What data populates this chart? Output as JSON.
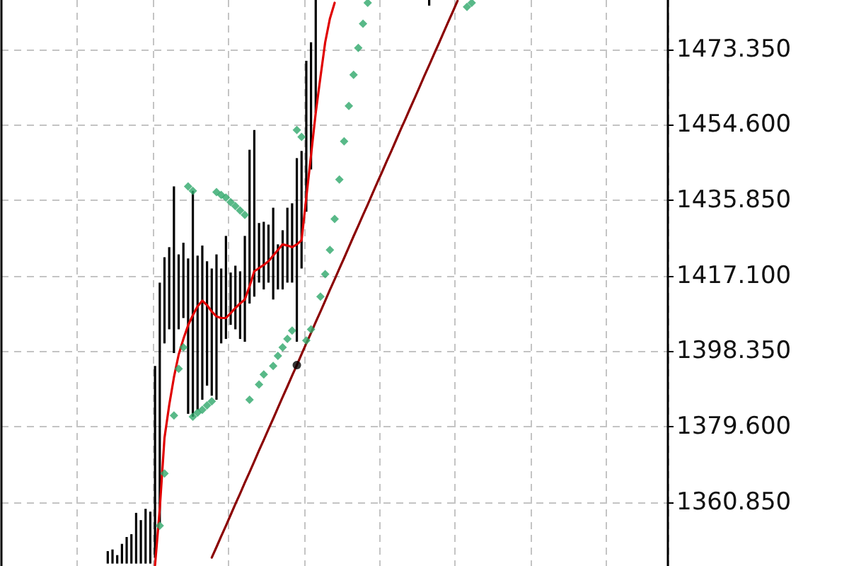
{
  "chart_data": {
    "type": "bar",
    "categories": [
      null,
      null,
      null,
      null,
      null,
      null,
      null,
      null,
      null,
      null,
      null,
      null,
      null,
      null,
      null,
      null,
      null,
      null,
      null,
      null,
      null,
      null,
      null,
      null,
      null,
      null,
      null,
      null,
      null,
      null,
      null,
      null,
      null,
      null,
      null,
      null,
      null,
      null,
      null,
      null,
      null,
      null,
      null,
      null,
      null,
      null,
      null,
      null,
      null,
      null,
      null,
      null,
      null,
      null,
      null,
      null,
      null,
      null,
      null,
      null,
      null,
      null,
      null,
      null,
      null,
      null,
      null,
      null,
      null,
      null,
      null,
      null,
      null,
      null,
      null,
      null,
      null,
      null,
      null,
      null,
      null,
      null,
      null,
      null,
      null,
      null,
      null,
      null,
      null,
      null,
      null,
      null,
      null,
      null,
      null,
      null,
      null,
      null,
      null,
      null,
      null,
      null,
      null,
      null,
      null,
      null,
      null,
      null,
      null,
      null,
      null,
      null,
      null,
      null,
      null,
      null,
      null,
      null,
      null,
      null,
      null,
      null,
      null,
      null,
      null,
      null,
      null,
      null,
      null,
      null,
      null,
      null,
      null,
      null,
      null,
      null,
      null,
      null,
      null,
      null,
      null
    ],
    "ylim": [
      1345.0,
      1485.6
    ],
    "yticks": [
      {
        "value": 1360.85,
        "label": "1360.850"
      },
      {
        "value": 1379.6,
        "label": "1379.600"
      },
      {
        "value": 1398.35,
        "label": "1398.350"
      },
      {
        "value": 1417.1,
        "label": "1417.100"
      },
      {
        "value": 1435.85,
        "label": "1435.850"
      },
      {
        "value": 1454.6,
        "label": "1454.600"
      },
      {
        "value": 1473.35,
        "label": "1473.350"
      }
    ],
    "grid": true,
    "tick_labels": "y",
    "series": [
      {
        "color": "#000000",
        "base": [
          null,
          null,
          null,
          null,
          null,
          null,
          null,
          null,
          null,
          null,
          null,
          null,
          null,
          null,
          null,
          null,
          null,
          null,
          null,
          null,
          null,
          null,
          1345.6,
          1345.6,
          1345.6,
          1345.6,
          1345.6,
          1345.6,
          1345.6,
          1345.6,
          1345.6,
          1345.6,
          1347.0,
          1355.7,
          1400.3,
          1403.8,
          1397.9,
          1403.8,
          1406.6,
          1382.8,
          1382.1,
          1383.8,
          1386.3,
          1389.8,
          1387.3,
          1386.3,
          1400.3,
          1401.4,
          1404.9,
          1403.8,
          1401.4,
          1400.7,
          1410.2,
          1411.9,
          1415.4,
          1413.7,
          1415.4,
          1411.2,
          1413.7,
          1413.7,
          1415.4,
          1415.4,
          1400.7,
          1418.9,
          1433.0,
          1443.5,
          1457.6,
          null,
          null,
          null,
          null,
          null,
          null,
          null,
          null,
          null,
          null,
          null,
          null,
          null,
          null,
          null,
          null,
          null,
          null,
          null,
          null,
          null,
          null,
          null,
          1484.2,
          null,
          null,
          null,
          null,
          null,
          null,
          null,
          null,
          null,
          null,
          null,
          null,
          null,
          null,
          null,
          null,
          null,
          null,
          null,
          null,
          null,
          null,
          null,
          null,
          null,
          null,
          null,
          null,
          null,
          null,
          null,
          null,
          null,
          null,
          null,
          null,
          null,
          null,
          null,
          null,
          null,
          null,
          null,
          null,
          null,
          null,
          null,
          null,
          null,
          null
        ],
        "values": [
          null,
          null,
          null,
          null,
          null,
          null,
          null,
          null,
          null,
          null,
          null,
          null,
          null,
          null,
          null,
          null,
          null,
          null,
          null,
          null,
          null,
          null,
          3.1,
          3.5,
          2.1,
          4.9,
          6.6,
          7.3,
          12.6,
          10.8,
          13.6,
          12.9,
          47.7,
          59.7,
          21.4,
          20.4,
          41.4,
          18.6,
          18.7,
          38.6,
          56.1,
          38.3,
          38.3,
          30.9,
          31.6,
          36.1,
          18.6,
          25.6,
          13.0,
          15.8,
          16.8,
          26.3,
          38.2,
          41.4,
          14.8,
          16.8,
          14.4,
          22.8,
          11.2,
          14.7,
          18.6,
          19.7,
          45.6,
          29.2,
          37.5,
          31.6,
          28.0,
          null,
          null,
          null,
          null,
          null,
          null,
          null,
          null,
          null,
          null,
          null,
          null,
          null,
          null,
          null,
          null,
          null,
          null,
          null,
          null,
          null,
          null,
          null,
          1.4,
          null,
          null,
          null,
          null,
          null,
          null,
          null,
          null,
          null,
          null,
          null,
          null,
          null,
          null,
          null,
          null,
          null,
          null,
          null,
          null,
          null,
          null,
          null,
          null,
          null,
          null,
          null,
          null,
          null,
          null,
          null,
          null,
          null,
          null,
          null,
          null,
          null,
          null,
          null,
          null,
          null,
          null,
          null,
          null,
          null,
          null,
          null,
          null,
          null,
          null
        ]
      },
      {
        "type": "line",
        "color": "#e00000",
        "marker": "none",
        "values": [
          null,
          null,
          null,
          null,
          null,
          null,
          null,
          null,
          null,
          null,
          null,
          null,
          null,
          null,
          null,
          null,
          null,
          null,
          null,
          null,
          null,
          null,
          null,
          null,
          null,
          null,
          null,
          null,
          null,
          null,
          null,
          null,
          1345.2,
          1359.2,
          1376.8,
          1385.0,
          1391.9,
          1397.5,
          1401.4,
          1404.8,
          1407.3,
          1409.5,
          1410.9,
          1409.8,
          1408.2,
          1407.0,
          1406.6,
          1406.6,
          1407.8,
          1409.1,
          1410.2,
          1411.2,
          1414.5,
          1418.2,
          1419.0,
          1419.8,
          1420.7,
          1422.1,
          1423.5,
          1424.9,
          1424.6,
          1424.2,
          1424.9,
          1425.9,
          1436.5,
          1447.0,
          1457.6,
          1466.5,
          1475.1,
          1481.0,
          1484.9,
          null,
          null,
          null,
          null,
          null,
          null,
          null,
          null,
          null,
          null,
          null,
          null,
          null,
          null,
          null,
          null,
          null,
          null,
          null,
          null,
          null,
          null,
          null,
          null,
          null,
          null,
          null,
          null,
          null,
          null,
          null,
          null,
          null,
          null,
          null,
          null,
          null,
          null,
          null,
          null,
          null,
          null,
          null,
          null,
          null,
          null,
          null,
          null,
          null,
          null,
          null,
          null,
          null,
          null,
          null,
          null,
          null,
          null,
          null,
          null,
          null,
          null,
          null,
          null,
          null,
          null,
          null,
          null,
          null,
          null
        ]
      },
      {
        "type": "scatter",
        "color": "#2ea86a",
        "marker": "diamond",
        "values": [
          null,
          null,
          null,
          null,
          null,
          null,
          null,
          null,
          null,
          null,
          null,
          null,
          null,
          null,
          null,
          null,
          null,
          null,
          null,
          null,
          null,
          null,
          null,
          null,
          null,
          null,
          null,
          null,
          null,
          null,
          null,
          null,
          null,
          1355.0,
          1368.0,
          null,
          1382.4,
          1394.0,
          1399.3,
          null,
          1382.1,
          1383.1,
          1383.8,
          1384.9,
          1385.9,
          null,
          null,
          null,
          null,
          null,
          null,
          null,
          1386.3,
          null,
          1390.1,
          1392.6,
          null,
          1394.7,
          1397.2,
          1399.3,
          1401.4,
          1403.5,
          null,
          null,
          1401.0,
          1403.8,
          null,
          1411.9,
          1417.5,
          1423.5,
          1431.2,
          1441.0,
          1450.5,
          1459.3,
          1467.0,
          1473.7,
          1479.7,
          1484.9,
          null,
          null,
          null,
          null,
          null,
          null,
          null,
          null,
          null,
          null,
          null,
          null,
          null,
          null,
          null,
          null,
          null,
          null,
          null,
          null,
          null,
          null,
          null,
          null,
          null,
          null,
          null,
          null,
          null,
          null,
          null,
          null,
          null,
          null,
          null,
          null,
          null,
          null,
          null,
          null,
          null,
          null,
          null,
          null,
          null,
          null,
          null,
          null,
          null,
          null,
          null,
          null,
          null,
          null,
          null,
          null,
          null,
          null,
          null,
          null,
          null,
          null,
          null
        ]
      },
      {
        "type": "scatter",
        "color": "#2ea86a",
        "marker": "diamond",
        "values": [
          null,
          null,
          null,
          null,
          null,
          null,
          null,
          null,
          null,
          null,
          null,
          null,
          null,
          null,
          null,
          null,
          null,
          null,
          null,
          null,
          null,
          null,
          null,
          null,
          null,
          null,
          null,
          null,
          null,
          null,
          null,
          null,
          null,
          null,
          null,
          null,
          null,
          null,
          null,
          1439.3,
          1438.2,
          null,
          null,
          null,
          null,
          1437.9,
          1437.2,
          1436.5,
          1435.4,
          1434.4,
          1433.3,
          1432.2,
          null,
          null,
          null,
          null,
          null,
          null,
          null,
          null,
          null,
          null,
          1453.3,
          1451.6,
          null,
          null,
          null,
          null,
          null,
          null,
          null,
          null,
          null,
          null,
          null,
          null,
          null,
          null,
          null,
          null,
          null,
          null,
          null,
          null,
          null,
          null,
          null,
          null,
          null,
          null,
          null,
          null,
          null,
          null,
          null,
          null,
          null,
          null,
          1483.9,
          1484.9,
          null,
          null,
          null,
          null,
          null,
          null,
          null,
          null,
          null,
          null,
          null,
          null,
          null,
          null,
          null,
          null,
          null,
          null,
          null,
          null,
          null,
          null,
          null,
          null,
          null,
          null,
          null,
          null,
          null,
          null,
          null,
          null,
          null,
          null,
          null,
          null,
          null,
          null,
          null,
          null,
          null
        ]
      },
      {
        "type": "line",
        "color": "#8b0000",
        "marker": "none",
        "values": [
          null,
          null,
          null,
          null,
          null,
          null,
          null,
          null,
          null,
          null,
          null,
          null,
          null,
          null,
          null,
          null,
          null,
          null,
          null,
          null,
          null,
          null,
          null,
          null,
          null,
          null,
          null,
          null,
          null,
          null,
          null,
          null,
          null,
          null,
          null,
          null,
          null,
          null,
          null,
          null,
          null,
          null,
          null,
          null,
          1347.1,
          1349.7,
          1352.4,
          1355.0,
          1357.7,
          1360.4,
          1363.0,
          1365.7,
          1368.3,
          1371.0,
          1373.7,
          1376.3,
          1379.0,
          1381.6,
          1384.3,
          1387.0,
          1389.6,
          1392.3,
          1394.9,
          1397.6,
          1400.3,
          1402.9,
          1405.6,
          1408.2,
          1410.9,
          1413.6,
          1416.2,
          1418.9,
          1421.5,
          1424.2,
          1426.9,
          1429.5,
          1432.2,
          1434.8,
          1437.5,
          1440.2,
          1442.8,
          1445.5,
          1448.1,
          1450.8,
          1453.5,
          1456.1,
          1458.8,
          1461.4,
          1464.1,
          1466.8,
          1469.4,
          1472.1,
          1474.7,
          1477.4,
          1480.1,
          1482.7,
          1485.4,
          null,
          null,
          null,
          null,
          null,
          null,
          null,
          null,
          null,
          null,
          null,
          null,
          null,
          null,
          null,
          null,
          null,
          null,
          null,
          null,
          null,
          null,
          null,
          null,
          null,
          null,
          null,
          null,
          null,
          null,
          null,
          null,
          null,
          null,
          null,
          null,
          null,
          null,
          null,
          null,
          null,
          null,
          null,
          null
        ]
      },
      {
        "type": "scatter",
        "color": "#000000",
        "marker": "circle",
        "values": [
          null,
          null,
          null,
          null,
          null,
          null,
          null,
          null,
          null,
          null,
          null,
          null,
          null,
          null,
          null,
          null,
          null,
          null,
          null,
          null,
          null,
          null,
          null,
          null,
          null,
          null,
          null,
          null,
          null,
          null,
          null,
          null,
          null,
          null,
          null,
          null,
          null,
          null,
          null,
          null,
          null,
          null,
          null,
          null,
          null,
          null,
          null,
          null,
          null,
          null,
          null,
          null,
          null,
          null,
          null,
          null,
          null,
          null,
          null,
          null,
          null,
          null,
          1394.9,
          null,
          null,
          null,
          null,
          null,
          null,
          null,
          null,
          null,
          null,
          null,
          null,
          null,
          null,
          null,
          null,
          null,
          null,
          null,
          null,
          null,
          null,
          null,
          null,
          null,
          null,
          null,
          null,
          null,
          null,
          null,
          null,
          null,
          null,
          null,
          null,
          null,
          null,
          null,
          null,
          null,
          null,
          null,
          null,
          null,
          null,
          null,
          null,
          null,
          null,
          null,
          null,
          null,
          null,
          null,
          null,
          null,
          null,
          null,
          null,
          null,
          null,
          null,
          null,
          null,
          null,
          null,
          null,
          null,
          null,
          null,
          null,
          null,
          null,
          null,
          null,
          null,
          null
        ]
      }
    ]
  }
}
